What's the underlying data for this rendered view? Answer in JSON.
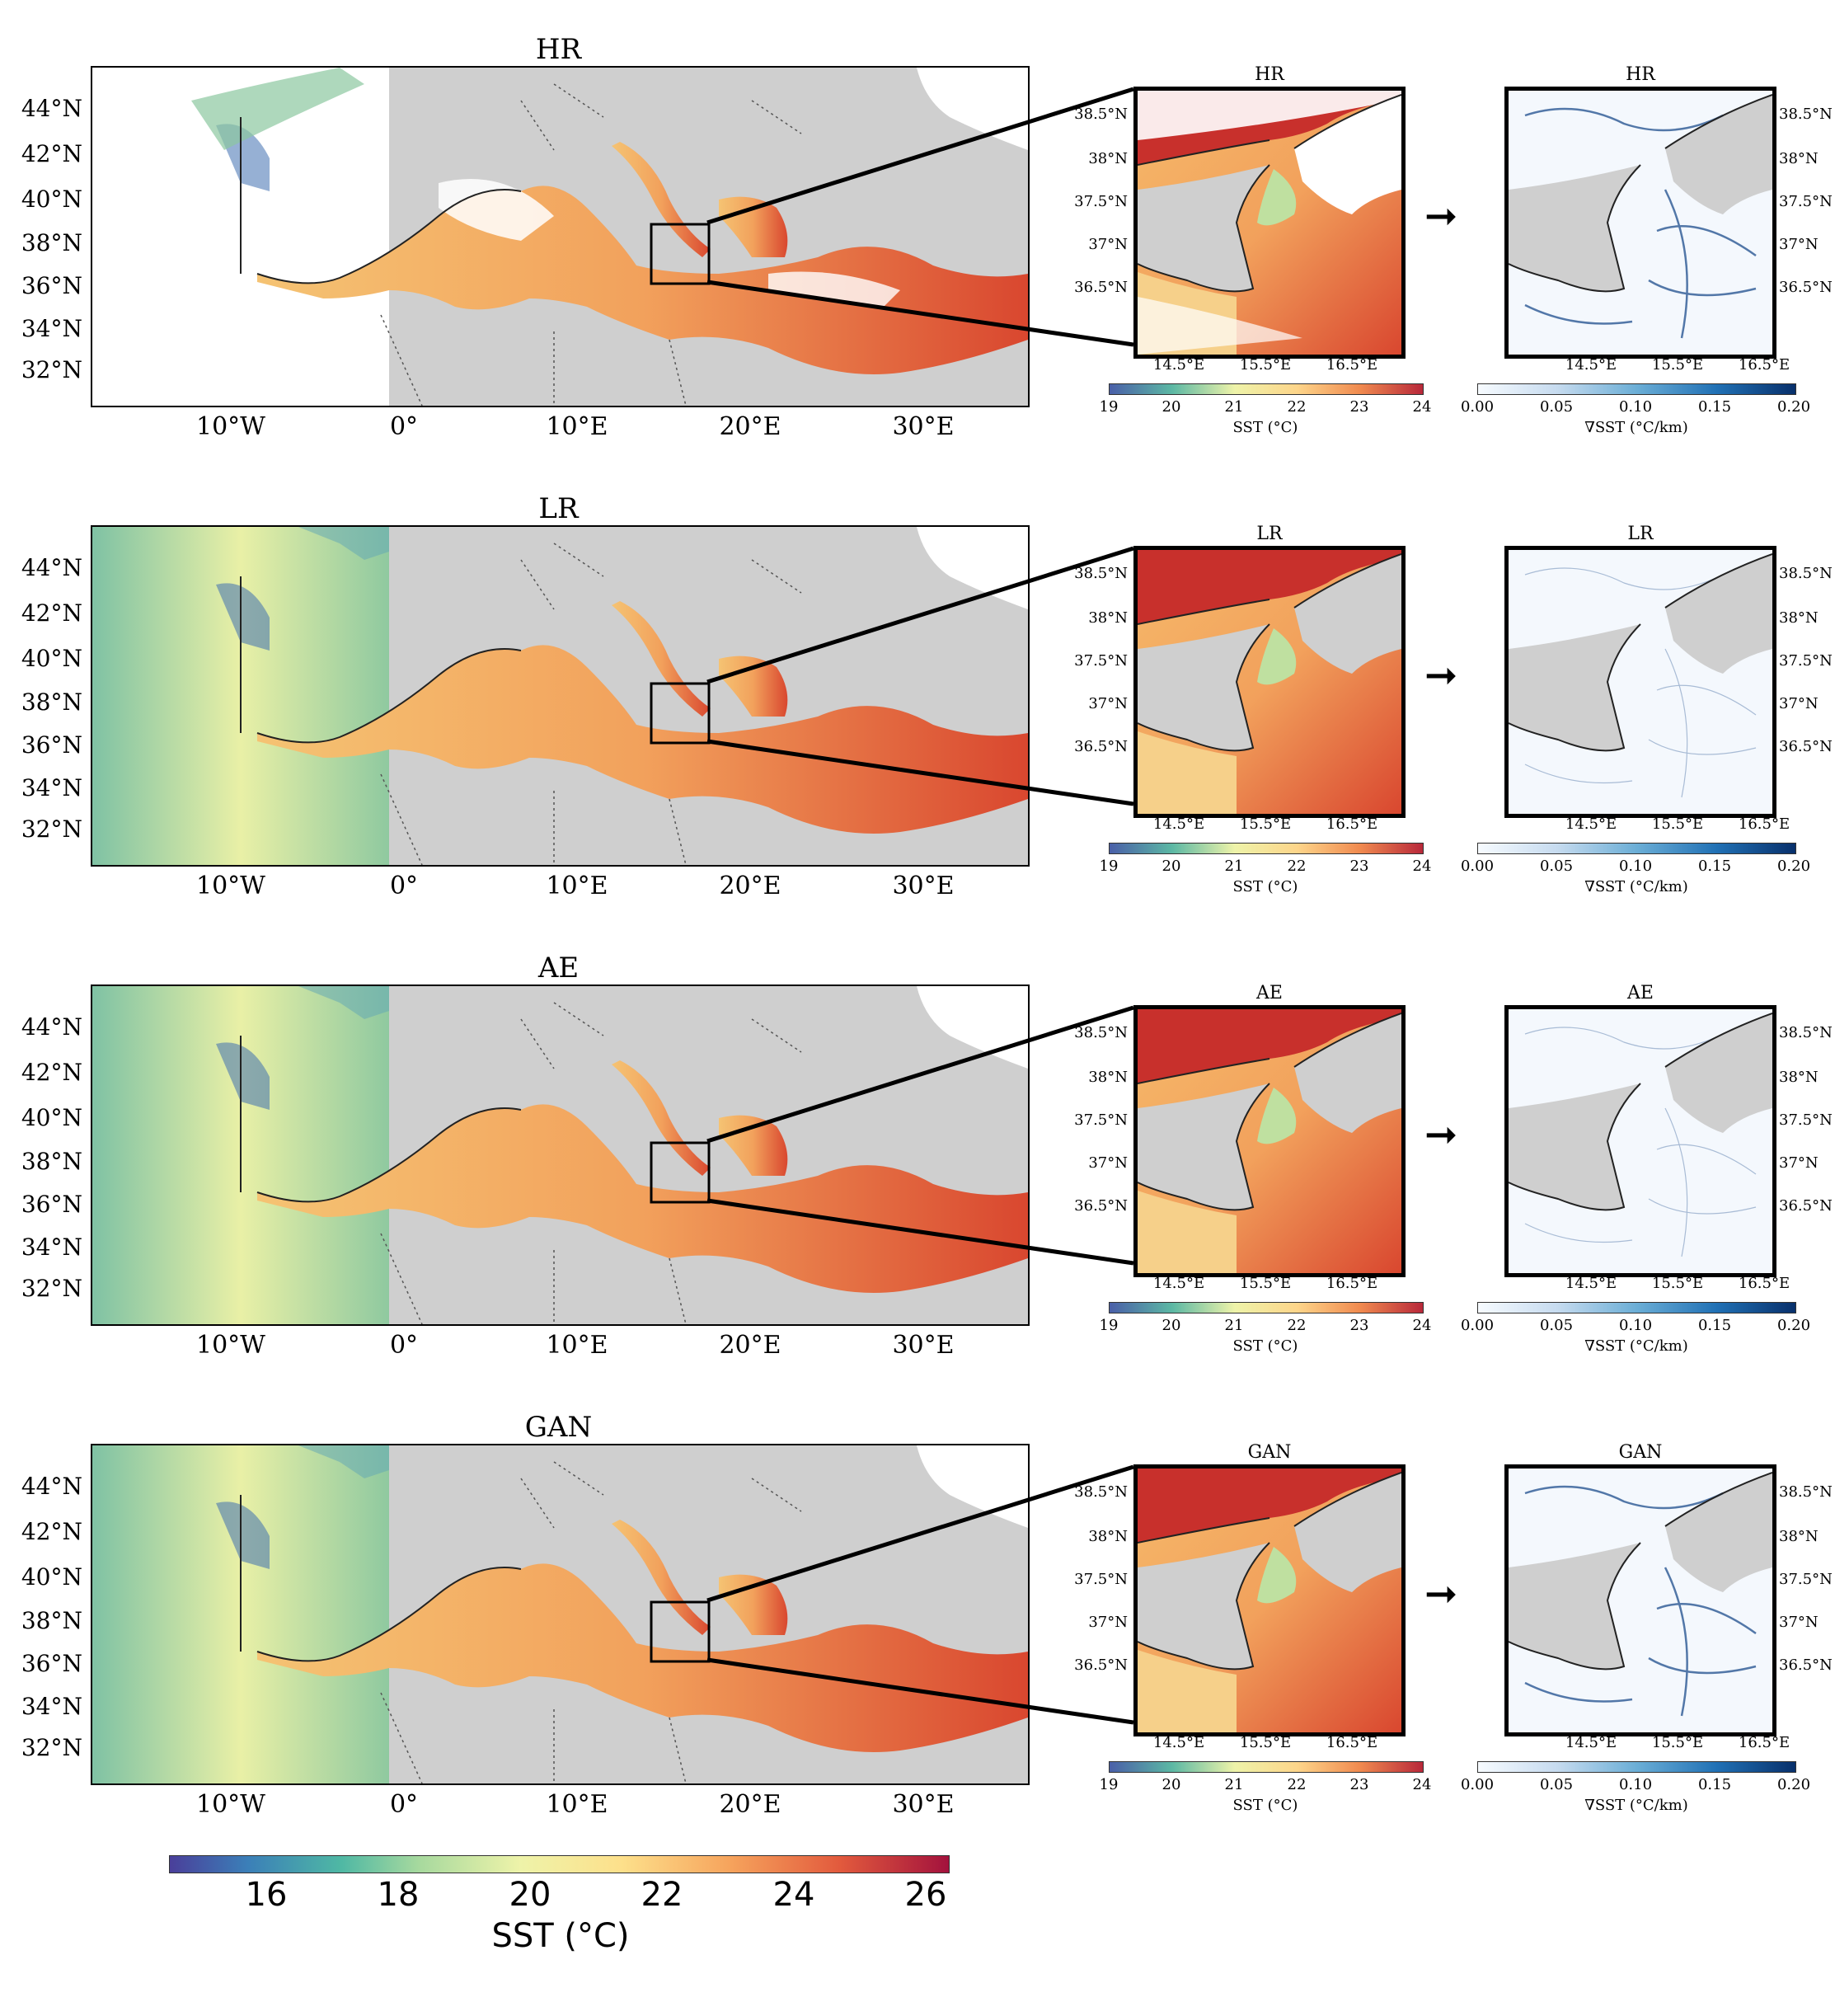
{
  "rows": [
    {
      "title": "HR",
      "zoom_title": "HR",
      "grad_title": "HR"
    },
    {
      "title": "LR",
      "zoom_title": "LR",
      "grad_title": "LR"
    },
    {
      "title": "AE",
      "zoom_title": "AE",
      "grad_title": "AE"
    },
    {
      "title": "GAN",
      "zoom_title": "GAN",
      "grad_title": "GAN"
    }
  ],
  "main_lat_ticks": [
    "44°N",
    "42°N",
    "40°N",
    "38°N",
    "36°N",
    "34°N",
    "32°N"
  ],
  "main_lon_ticks": [
    "10°W",
    "0°",
    "10°E",
    "20°E",
    "30°E"
  ],
  "zoom_lat_ticks": [
    "38.5°N",
    "38°N",
    "37.5°N",
    "37°N",
    "36.5°N"
  ],
  "zoom_lon_ticks": [
    "14.5°E",
    "15.5°E",
    "16.5°E"
  ],
  "sst_cbar": {
    "ticks": [
      "19",
      "20",
      "21",
      "22",
      "23",
      "24"
    ],
    "label": "SST (°C)"
  },
  "grad_cbar": {
    "ticks": [
      "0.00",
      "0.05",
      "0.10",
      "0.15",
      "0.20"
    ],
    "label": "∇SST (°C/km)"
  },
  "big_cbar": {
    "ticks": [
      "16",
      "18",
      "20",
      "22",
      "24",
      "26"
    ],
    "label": "SST (°C)"
  },
  "arrow_symbol": "➞",
  "colors": {
    "land": "#cfcfcf",
    "sea_warm": "#f2a15c",
    "sea_hot": "#d9472f",
    "atlantic": "#e9f0a6",
    "cold": "#3f6fb0",
    "grad_low": "#f4f8fd",
    "grad_high": "#1c4c8c"
  }
}
